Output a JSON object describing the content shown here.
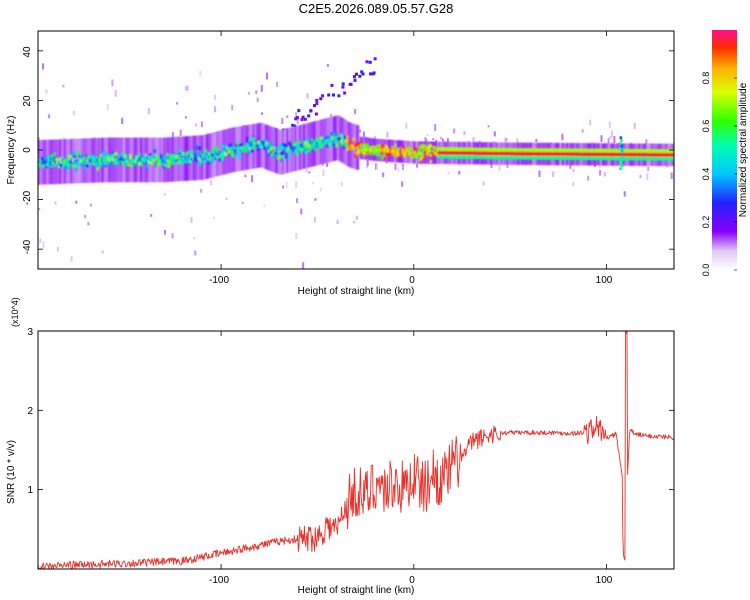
{
  "title": "C2E5.2026.089.05.57.G28",
  "chart_data": [
    {
      "type": "heatmap",
      "id": "spectrogram",
      "xlabel": "Height of straight line (km)",
      "ylabel": "Frequency (Hz)",
      "xlim": [
        -195,
        135
      ],
      "ylim": [
        -48,
        48
      ],
      "xticks": [
        -100,
        0,
        100
      ],
      "yticks": [
        -40,
        -20,
        0,
        20,
        40
      ],
      "colorbar": {
        "label": "Normalized spectral amplitude",
        "range": [
          0,
          1
        ],
        "ticks": [
          0.0,
          0.2,
          0.4,
          0.6,
          0.8
        ]
      },
      "ridge": {
        "description": "dominant frequency track (Hz) vs height (km)",
        "x": [
          -195,
          -160,
          -130,
          -110,
          -95,
          -80,
          -70,
          -60,
          -50,
          -40,
          -34,
          -30,
          -20,
          0,
          50,
          100,
          135
        ],
        "y": [
          -5,
          -4,
          -4,
          -3,
          0,
          2,
          -1,
          1,
          3,
          5,
          2,
          1,
          0,
          -1,
          -1.5,
          -1.8,
          -2
        ]
      }
    },
    {
      "type": "line",
      "id": "snr",
      "xlabel": "Height of straight line (km)",
      "ylabel": "SNR (10 * v/v)",
      "y_multiplier": "(x10^4)",
      "xlim": [
        -195,
        135
      ],
      "ylim": [
        0,
        3
      ],
      "xticks": [
        -100,
        0,
        100
      ],
      "yticks": [
        1,
        2,
        3
      ],
      "series": [
        {
          "name": "SNR",
          "color": "#e8312b",
          "x": [
            -195,
            -180,
            -160,
            -140,
            -120,
            -110,
            -100,
            -90,
            -80,
            -70,
            -60,
            -50,
            -45,
            -40,
            -35,
            -30,
            -25,
            -20,
            -15,
            -10,
            -5,
            0,
            5,
            10,
            15,
            20,
            25,
            30,
            40,
            50,
            60,
            70,
            80,
            90,
            95,
            100,
            105,
            108,
            110,
            112,
            115,
            120,
            135
          ],
          "y": [
            0.02,
            0.05,
            0.06,
            0.08,
            0.1,
            0.15,
            0.2,
            0.25,
            0.3,
            0.35,
            0.38,
            0.4,
            0.55,
            0.5,
            0.8,
            1.0,
            0.9,
            1.1,
            1.0,
            1.1,
            1.0,
            1.2,
            1.0,
            1.2,
            1.1,
            1.3,
            1.4,
            1.6,
            1.7,
            1.72,
            1.72,
            1.72,
            1.71,
            1.72,
            1.8,
            1.65,
            1.7,
            1.2,
            0.7,
            1.75,
            1.7,
            1.68,
            1.66
          ]
        }
      ]
    }
  ]
}
